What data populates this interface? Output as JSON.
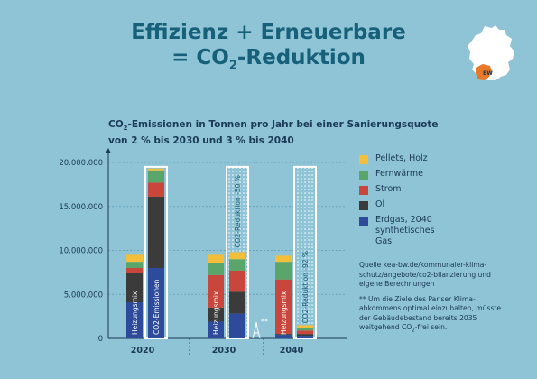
{
  "header": {
    "title_line1": "Effizienz + Erneuerbare",
    "title_line2_prefix": "= CO",
    "title_line2_sub": "2",
    "title_line2_suffix": "-Reduktion"
  },
  "map": {
    "label": "BW",
    "colors": {
      "land": "#ffffff",
      "bw": "#e8792b"
    }
  },
  "chart_data": {
    "type": "bar",
    "subtitle_prefix": "CO",
    "subtitle_sub": "2",
    "subtitle_rest": "-Emissionen in Tonnen pro Jahr bei einer Sanierungsquote",
    "subtitle_line2": "von 2 % bis 2030 und 3 % bis 2040",
    "ylim": [
      0,
      20000000
    ],
    "yticks": [
      {
        "value": 0,
        "label": "0"
      },
      {
        "value": 5000000,
        "label": "5.000.000"
      },
      {
        "value": 10000000,
        "label": "10.000.000"
      },
      {
        "value": 15000000,
        "label": "15.000.000"
      },
      {
        "value": 20000000,
        "label": "20.000.000"
      }
    ],
    "groups": [
      {
        "label": "2020"
      },
      {
        "label": "2030"
      },
      {
        "label": "2040"
      }
    ],
    "series": [
      {
        "key": "erdgas",
        "color": "#2d4a9b"
      },
      {
        "key": "oel",
        "color": "#3b3b3b"
      },
      {
        "key": "strom",
        "color": "#c9463c"
      },
      {
        "key": "fernwaerme",
        "color": "#5aa56a"
      },
      {
        "key": "pellets",
        "color": "#f3bf3a"
      }
    ],
    "bars": [
      {
        "group": 0,
        "label": "Heizungsmix",
        "values": {
          "erdgas": 4100000,
          "oel": 3300000,
          "strom": 600000,
          "fernwaerme": 700000,
          "pellets": 800000
        }
      },
      {
        "group": 0,
        "label": "",
        "values": {
          "erdgas": 8000000,
          "oel": 8100000,
          "strom": 1600000,
          "fernwaerme": 1400000,
          "pellets": 200000
        },
        "outline_total": 19500000
      },
      {
        "group": 1,
        "label": "Heizungsmix",
        "values": {
          "erdgas": 1900000,
          "oel": 1600000,
          "strom": 3700000,
          "fernwaerme": 1400000,
          "pellets": 900000
        }
      },
      {
        "group": 1,
        "label": "",
        "values": {
          "erdgas": 2800000,
          "oel": 2500000,
          "strom": 2400000,
          "fernwaerme": 1300000,
          "pellets": 800000
        },
        "outline_total": 19500000
      },
      {
        "group": 2,
        "label": "Heizungsmix",
        "values": {
          "erdgas": 400000,
          "oel": 100000,
          "strom": 6200000,
          "fernwaerme": 2000000,
          "pellets": 700000
        }
      },
      {
        "group": 2,
        "label": "",
        "values": {
          "erdgas": 300000,
          "oel": 200000,
          "strom": 400000,
          "fernwaerme": 300000,
          "pellets": 300000
        },
        "outline_total": 19500000
      }
    ],
    "outline_labels": [
      {
        "bar": 1,
        "text": "CO2-Emissionen"
      },
      {
        "bar": 3,
        "text": "CO2-Reduktion -50 %"
      },
      {
        "bar": 5,
        "text": "CO2-Reduktion -92 %"
      }
    ],
    "annotation": "**",
    "legend": [
      {
        "key": "pellets",
        "label": "Pellets, Holz"
      },
      {
        "key": "fernwaerme",
        "label": "Fernwärme"
      },
      {
        "key": "strom",
        "label": "Strom"
      },
      {
        "key": "oel",
        "label": "Öl"
      },
      {
        "key": "erdgas",
        "label": "Erdgas, 2040 synthetisches Gas"
      }
    ]
  },
  "source": {
    "text": "Quelle kea-bw.de/kommunaler-klima-schutz/angebote/co2-bilanzierung und eigene Berechnungen",
    "note_prefix": "** Um die Ziele des Pariser Klima-abkommens optimal einzuhalten, müsste der Gebäudebestand bereits 2035 weitgehend CO",
    "note_sub": "2",
    "note_suffix": "-frei sein."
  }
}
